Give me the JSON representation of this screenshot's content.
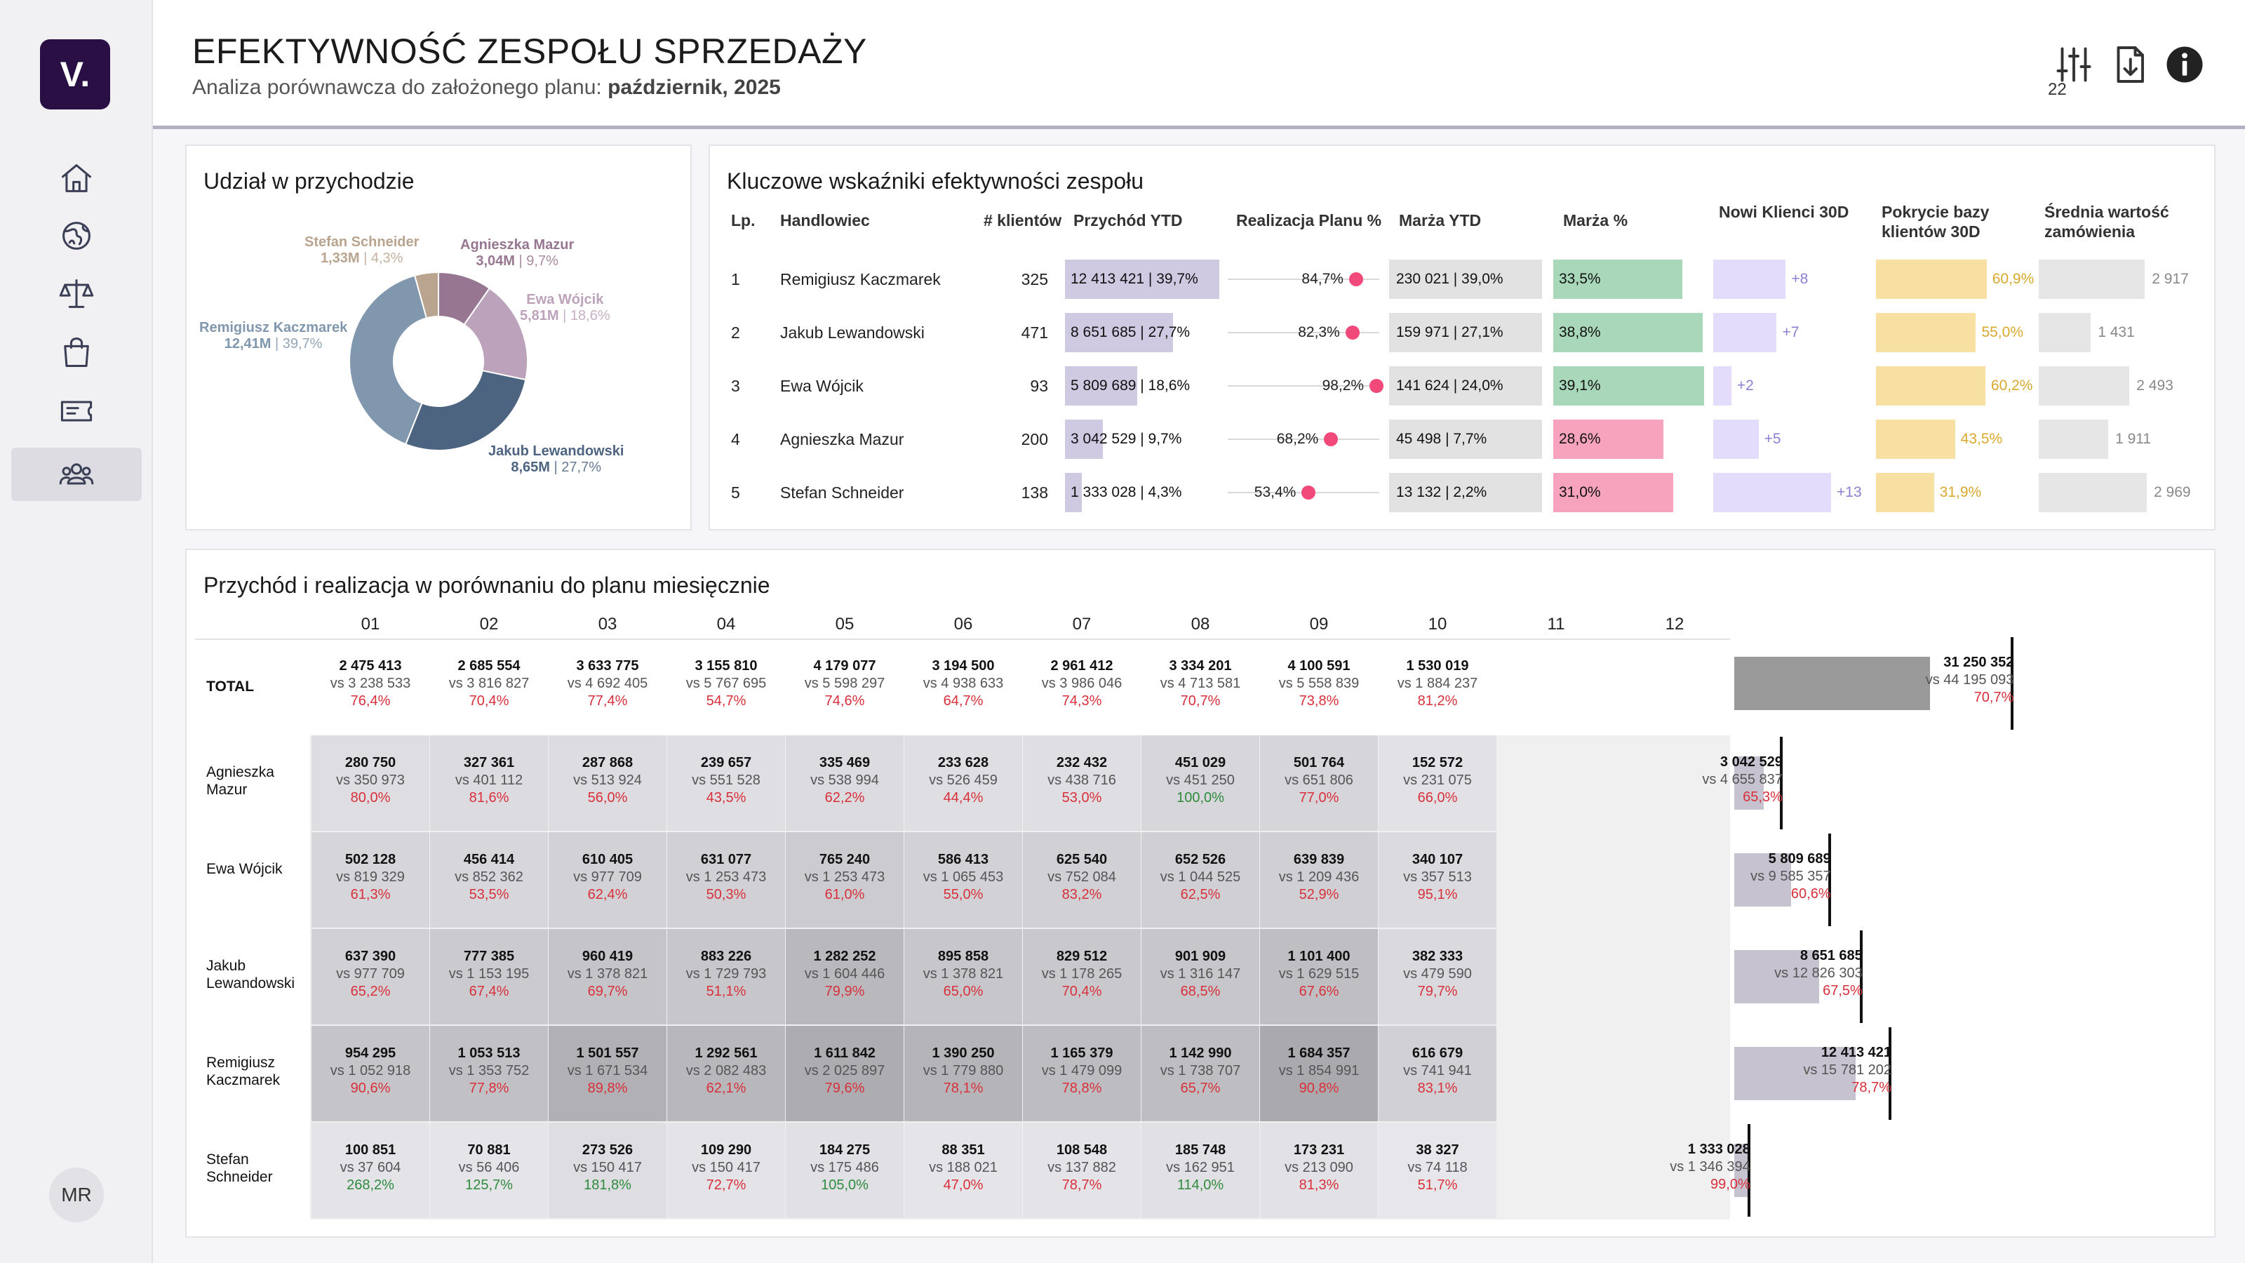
{
  "app": {
    "logo_text": "V.",
    "user_initials": "MR"
  },
  "nav": [
    {
      "icon": "home-icon",
      "active": false
    },
    {
      "icon": "globe-icon",
      "active": false
    },
    {
      "icon": "scales-icon",
      "active": false
    },
    {
      "icon": "shopping-bag-icon",
      "active": false
    },
    {
      "icon": "ticket-icon",
      "active": false
    },
    {
      "icon": "team-icon",
      "active": true
    }
  ],
  "header": {
    "title": "EFEKTYWNOŚĆ ZESPOŁU SPRZEDAŻY",
    "subtitle_prefix": "Analiza porównawcza do założonego planu: ",
    "subtitle_period": "październik, 2025",
    "filter_count": "22",
    "icons": [
      "filter-sliders-icon",
      "download-icon",
      "info-icon"
    ]
  },
  "pie_panel": {
    "title": "Udział w przychodzie",
    "chart_data": {
      "type": "pie",
      "donut": true,
      "slices": [
        {
          "name": "Remigiusz Kaczmarek",
          "value_label": "12,41M",
          "percent_label": "39,7%",
          "percent": 39.7,
          "color": "#8097ad"
        },
        {
          "name": "Jakub Lewandowski",
          "value_label": "8,65M",
          "percent_label": "27,7%",
          "percent": 27.7,
          "color": "#4d6480"
        },
        {
          "name": "Ewa Wójcik",
          "value_label": "5,81M",
          "percent_label": "18,6%",
          "percent": 18.6,
          "color": "#bca3bb"
        },
        {
          "name": "Agnieszka Mazur",
          "value_label": "3,04M",
          "percent_label": "9,7%",
          "percent": 9.7,
          "color": "#967690"
        },
        {
          "name": "Stefan Schneider",
          "value_label": "1,33M",
          "percent_label": "4,3%",
          "percent": 4.3,
          "color": "#b8a48f"
        }
      ]
    }
  },
  "kpi_panel": {
    "title": "Kluczowe wskaźniki efektywności zespołu",
    "headers": [
      "Lp.",
      "Handlowiec",
      "# klientów",
      "Przychód YTD",
      "Realizacja Planu %",
      "Marża YTD",
      "Marża %",
      "Nowi Klienci 30D",
      "Pokrycie bazy klientów 30D",
      "Średnia wartość zamówienia"
    ],
    "colors": {
      "revenue_bar": "#cfc9e2",
      "plan_dot": "#f0497a",
      "margin_bar": "#e2e2e2",
      "margin_pct_good": "#a8d8b9",
      "margin_pct_bad": "#f7a3bd",
      "new_clients": "#e4dcfb",
      "coverage": "#f7e0a2",
      "avg_order": "#e6e6e6"
    },
    "rows": [
      {
        "lp": "1",
        "name": "Remigiusz Kaczmarek",
        "clients": "325",
        "revenue": "12 413 421 | 39,7%",
        "revenue_share": 39.7,
        "plan": "84,7%",
        "plan_value": 84.7,
        "margin": "230 021 | 39,0%",
        "margin_share": 39.0,
        "margin_pct": "33,5%",
        "margin_pct_value": 33.5,
        "margin_good": true,
        "new_clients": "+8",
        "new_value": 8,
        "coverage": "60,9%",
        "coverage_value": 60.9,
        "avg_order": "2 917",
        "avg_value": 2917
      },
      {
        "lp": "2",
        "name": "Jakub Lewandowski",
        "clients": "471",
        "revenue": "8 651 685 | 27,7%",
        "revenue_share": 27.7,
        "plan": "82,3%",
        "plan_value": 82.3,
        "margin": "159 971 | 27,1%",
        "margin_share": 27.1,
        "margin_pct": "38,8%",
        "margin_pct_value": 38.8,
        "margin_good": true,
        "new_clients": "+7",
        "new_value": 7,
        "coverage": "55,0%",
        "coverage_value": 55.0,
        "avg_order": "1 431",
        "avg_value": 1431
      },
      {
        "lp": "3",
        "name": "Ewa Wójcik",
        "clients": "93",
        "revenue": "5 809 689 | 18,6%",
        "revenue_share": 18.6,
        "plan": "98,2%",
        "plan_value": 98.2,
        "margin": "141 624 | 24,0%",
        "margin_share": 24.0,
        "margin_pct": "39,1%",
        "margin_pct_value": 39.1,
        "margin_good": true,
        "new_clients": "+2",
        "new_value": 2,
        "coverage": "60,2%",
        "coverage_value": 60.2,
        "avg_order": "2 493",
        "avg_value": 2493
      },
      {
        "lp": "4",
        "name": "Agnieszka Mazur",
        "clients": "200",
        "revenue": "3 042 529 | 9,7%",
        "revenue_share": 9.7,
        "plan": "68,2%",
        "plan_value": 68.2,
        "margin": "45 498 | 7,7%",
        "margin_share": 7.7,
        "margin_pct": "28,6%",
        "margin_pct_value": 28.6,
        "margin_good": false,
        "new_clients": "+5",
        "new_value": 5,
        "coverage": "43,5%",
        "coverage_value": 43.5,
        "avg_order": "1 911",
        "avg_value": 1911
      },
      {
        "lp": "5",
        "name": "Stefan Schneider",
        "clients": "138",
        "revenue": "1 333 028 | 4,3%",
        "revenue_share": 4.3,
        "plan": "53,4%",
        "plan_value": 53.4,
        "margin": "13 132 | 2,2%",
        "margin_share": 2.2,
        "margin_pct": "31,0%",
        "margin_pct_value": 31.0,
        "margin_good": false,
        "new_clients": "+13",
        "new_value": 13,
        "coverage": "31,9%",
        "coverage_value": 31.9,
        "avg_order": "2 969",
        "avg_value": 2969
      }
    ]
  },
  "month_panel": {
    "title": "Przychód i realizacja w porównaniu do planu miesięcznie",
    "months": [
      "01",
      "02",
      "03",
      "04",
      "05",
      "06",
      "07",
      "08",
      "09",
      "10",
      "11",
      "12"
    ],
    "total_label": "TOTAL",
    "total": [
      {
        "a": "2 475 413",
        "b": "vs 3 238 533",
        "c": "76,4%"
      },
      {
        "a": "2 685 554",
        "b": "vs 3 816 827",
        "c": "70,4%"
      },
      {
        "a": "3 633 775",
        "b": "vs 4 692 405",
        "c": "77,4%"
      },
      {
        "a": "3 155 810",
        "b": "vs 5 767 695",
        "c": "54,7%"
      },
      {
        "a": "4 179 077",
        "b": "vs 5 598 297",
        "c": "74,6%"
      },
      {
        "a": "3 194 500",
        "b": "vs 4 938 633",
        "c": "64,7%"
      },
      {
        "a": "2 961 412",
        "b": "vs 3 986 046",
        "c": "74,3%"
      },
      {
        "a": "3 334 201",
        "b": "vs 4 713 581",
        "c": "70,7%"
      },
      {
        "a": "4 100 591",
        "b": "vs 5 558 839",
        "c": "73,8%"
      },
      {
        "a": "1 530 019",
        "b": "vs 1 884 237",
        "c": "81,2%"
      }
    ],
    "rows": [
      {
        "name": "Agnieszka Mazur",
        "cells": [
          {
            "a": "280 750",
            "b": "vs 350 973",
            "c": "80,0%"
          },
          {
            "a": "327 361",
            "b": "vs 401 112",
            "c": "81,6%"
          },
          {
            "a": "287 868",
            "b": "vs 513 924",
            "c": "56,0%"
          },
          {
            "a": "239 657",
            "b": "vs 551 528",
            "c": "43,5%"
          },
          {
            "a": "335 469",
            "b": "vs 538 994",
            "c": "62,2%"
          },
          {
            "a": "233 628",
            "b": "vs 526 459",
            "c": "44,4%"
          },
          {
            "a": "232 432",
            "b": "vs 438 716",
            "c": "53,0%"
          },
          {
            "a": "451 029",
            "b": "vs 451 250",
            "c": "100,0%"
          },
          {
            "a": "501 764",
            "b": "vs 651 806",
            "c": "77,0%"
          },
          {
            "a": "152 572",
            "b": "vs 231 075",
            "c": "66,0%"
          }
        ]
      },
      {
        "name": "Ewa Wójcik",
        "cells": [
          {
            "a": "502 128",
            "b": "vs 819 329",
            "c": "61,3%"
          },
          {
            "a": "456 414",
            "b": "vs 852 362",
            "c": "53,5%"
          },
          {
            "a": "610 405",
            "b": "vs 977 709",
            "c": "62,4%"
          },
          {
            "a": "631 077",
            "b": "vs 1 253 473",
            "c": "50,3%"
          },
          {
            "a": "765 240",
            "b": "vs 1 253 473",
            "c": "61,0%"
          },
          {
            "a": "586 413",
            "b": "vs 1 065 453",
            "c": "55,0%"
          },
          {
            "a": "625 540",
            "b": "vs 752 084",
            "c": "83,2%"
          },
          {
            "a": "652 526",
            "b": "vs 1 044 525",
            "c": "62,5%"
          },
          {
            "a": "639 839",
            "b": "vs 1 209 436",
            "c": "52,9%"
          },
          {
            "a": "340 107",
            "b": "vs 357 513",
            "c": "95,1%"
          }
        ]
      },
      {
        "name": "Jakub Lewandowski",
        "cells": [
          {
            "a": "637 390",
            "b": "vs 977 709",
            "c": "65,2%"
          },
          {
            "a": "777 385",
            "b": "vs 1 153 195",
            "c": "67,4%"
          },
          {
            "a": "960 419",
            "b": "vs 1 378 821",
            "c": "69,7%"
          },
          {
            "a": "883 226",
            "b": "vs 1 729 793",
            "c": "51,1%"
          },
          {
            "a": "1 282 252",
            "b": "vs 1 604 446",
            "c": "79,9%"
          },
          {
            "a": "895 858",
            "b": "vs 1 378 821",
            "c": "65,0%"
          },
          {
            "a": "829 512",
            "b": "vs 1 178 265",
            "c": "70,4%"
          },
          {
            "a": "901 909",
            "b": "vs 1 316 147",
            "c": "68,5%"
          },
          {
            "a": "1 101 400",
            "b": "vs 1 629 515",
            "c": "67,6%"
          },
          {
            "a": "382 333",
            "b": "vs 479 590",
            "c": "79,7%"
          }
        ]
      },
      {
        "name": "Remigiusz Kaczmarek",
        "cells": [
          {
            "a": "954 295",
            "b": "vs 1 052 918",
            "c": "90,6%"
          },
          {
            "a": "1 053 513",
            "b": "vs 1 353 752",
            "c": "77,8%"
          },
          {
            "a": "1 501 557",
            "b": "vs 1 671 534",
            "c": "89,8%"
          },
          {
            "a": "1 292 561",
            "b": "vs 2 082 483",
            "c": "62,1%"
          },
          {
            "a": "1 611 842",
            "b": "vs 2 025 897",
            "c": "79,6%"
          },
          {
            "a": "1 390 250",
            "b": "vs 1 779 880",
            "c": "78,1%"
          },
          {
            "a": "1 165 379",
            "b": "vs 1 479 099",
            "c": "78,8%"
          },
          {
            "a": "1 142 990",
            "b": "vs 1 738 707",
            "c": "65,7%"
          },
          {
            "a": "1 684 357",
            "b": "vs 1 854 991",
            "c": "90,8%"
          },
          {
            "a": "616 679",
            "b": "vs 741 941",
            "c": "83,1%"
          }
        ]
      },
      {
        "name": "Stefan Schneider",
        "cells": [
          {
            "a": "100 851",
            "b": "vs 37 604",
            "c": "268,2%"
          },
          {
            "a": "70 881",
            "b": "vs 56 406",
            "c": "125,7%"
          },
          {
            "a": "273 526",
            "b": "vs 150 417",
            "c": "181,8%"
          },
          {
            "a": "109 290",
            "b": "vs 150 417",
            "c": "72,7%"
          },
          {
            "a": "184 275",
            "b": "vs 175 486",
            "c": "105,0%"
          },
          {
            "a": "88 351",
            "b": "vs 188 021",
            "c": "47,0%"
          },
          {
            "a": "108 548",
            "b": "vs 137 882",
            "c": "78,7%"
          },
          {
            "a": "185 748",
            "b": "vs 162 951",
            "c": "114,0%"
          },
          {
            "a": "173 231",
            "b": "vs 213 090",
            "c": "81,3%"
          },
          {
            "a": "38 327",
            "b": "vs 74 118",
            "c": "51,7%"
          }
        ]
      }
    ],
    "summary": [
      {
        "a": "31 250 352",
        "b": "vs 44 195 093",
        "c": "70,7%",
        "actual": 31250352,
        "plan": 44195093
      },
      {
        "a": "3 042 529",
        "b": "vs 4 655 837",
        "c": "65,3%",
        "actual": 3042529,
        "plan": 4655837
      },
      {
        "a": "5 809 689",
        "b": "vs 9 585 357",
        "c": "60,6%",
        "actual": 5809689,
        "plan": 9585357
      },
      {
        "a": "8 651 685",
        "b": "vs 12 826 303",
        "c": "67,5%",
        "actual": 8651685,
        "plan": 12826303
      },
      {
        "a": "12 413 421",
        "b": "vs 15 781 202",
        "c": "78,7%",
        "actual": 12413421,
        "plan": 15781202
      },
      {
        "a": "1 333 028",
        "b": "vs 1 346 394",
        "c": "99,0%",
        "actual": 1333028,
        "plan": 1346394
      }
    ]
  }
}
